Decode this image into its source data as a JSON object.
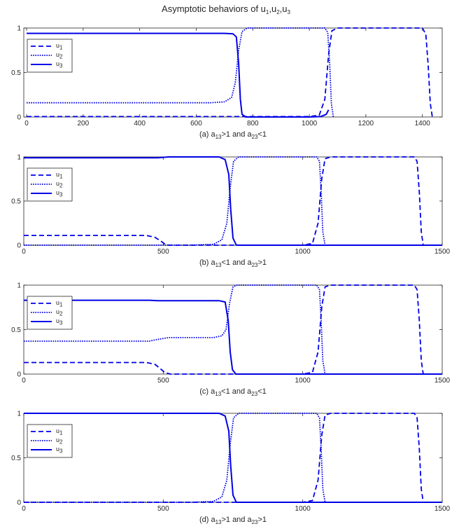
{
  "figure": {
    "title": {
      "main": "Asymptotic behaviors of u",
      "parts": [
        [
          "1",
          ",u"
        ],
        [
          "2",
          ",u"
        ],
        [
          "3",
          ""
        ]
      ]
    },
    "line_color": "#0000e6",
    "axis_color": "#262626"
  },
  "chart_data": [
    {
      "type": "line",
      "caption": {
        "prefix": "(a) a",
        "sub1": "13",
        "mid": ">1 and a",
        "sub2": "23",
        "suffix": "<1"
      },
      "xlim": [
        -10,
        1470
      ],
      "ylim": [
        0,
        1
      ],
      "xticks": [
        0,
        200,
        400,
        600,
        800,
        1000,
        1200,
        1400
      ],
      "yticks": [
        0,
        0.5,
        1
      ],
      "ytick_labels": [
        "0",
        "0.5",
        "1"
      ],
      "legend": {
        "position": "top-left",
        "entries": [
          {
            "label": "u",
            "sub": "1",
            "style": "dashed"
          },
          {
            "label": "u",
            "sub": "2",
            "style": "dotted"
          },
          {
            "label": "u",
            "sub": "3",
            "style": "solid"
          }
        ]
      },
      "series": [
        {
          "label": "u",
          "sub": "1",
          "style": "dashed",
          "points": [
            [
              0,
              0.005
            ],
            [
              1000,
              0.005
            ],
            [
              1035,
              0.02
            ],
            [
              1055,
              0.2
            ],
            [
              1068,
              0.7
            ],
            [
              1080,
              0.97
            ],
            [
              1100,
              1.0
            ],
            [
              1400,
              1.0
            ],
            [
              1412,
              0.93
            ],
            [
              1420,
              0.6
            ],
            [
              1428,
              0.15
            ],
            [
              1435,
              0.0
            ]
          ]
        },
        {
          "label": "u",
          "sub": "2",
          "style": "dotted",
          "points": [
            [
              0,
              0.16
            ],
            [
              650,
              0.16
            ],
            [
              700,
              0.17
            ],
            [
              725,
              0.22
            ],
            [
              738,
              0.38
            ],
            [
              750,
              0.75
            ],
            [
              762,
              0.96
            ],
            [
              780,
              1.0
            ],
            [
              1055,
              1.0
            ],
            [
              1065,
              0.95
            ],
            [
              1072,
              0.6
            ],
            [
              1078,
              0.15
            ],
            [
              1085,
              0.0
            ]
          ]
        },
        {
          "label": "u",
          "sub": "3",
          "style": "solid",
          "points": [
            [
              0,
              0.94
            ],
            [
              700,
              0.94
            ],
            [
              730,
              0.935
            ],
            [
              742,
              0.9
            ],
            [
              750,
              0.6
            ],
            [
              756,
              0.2
            ],
            [
              762,
              0.03
            ],
            [
              775,
              0.0
            ],
            [
              1000,
              0.0
            ],
            [
              1040,
              0.005
            ],
            [
              1060,
              0.03
            ],
            [
              1068,
              0.08
            ]
          ]
        }
      ]
    },
    {
      "type": "line",
      "caption": {
        "prefix": "(b) a",
        "sub1": "13",
        "mid": "<1 and a",
        "sub2": "23",
        "suffix": ">1"
      },
      "xlim": [
        0,
        1500
      ],
      "ylim": [
        0,
        1
      ],
      "xticks": [
        0,
        500,
        1000,
        1500
      ],
      "yticks": [
        0,
        0.5,
        1
      ],
      "ytick_labels": [
        "0",
        "0.5",
        "1"
      ],
      "legend": {
        "position": "top-left",
        "entries": [
          {
            "label": "u",
            "sub": "1",
            "style": "dashed"
          },
          {
            "label": "u",
            "sub": "2",
            "style": "dotted"
          },
          {
            "label": "u",
            "sub": "3",
            "style": "solid"
          }
        ]
      },
      "series": [
        {
          "label": "u",
          "sub": "1",
          "style": "dashed",
          "points": [
            [
              0,
              0.11
            ],
            [
              440,
              0.11
            ],
            [
              470,
              0.09
            ],
            [
              490,
              0.05
            ],
            [
              505,
              0.015
            ],
            [
              520,
              0.0
            ],
            [
              1000,
              0.0
            ],
            [
              1035,
              0.02
            ],
            [
              1055,
              0.25
            ],
            [
              1068,
              0.75
            ],
            [
              1080,
              0.98
            ],
            [
              1100,
              1.0
            ],
            [
              1400,
              1.0
            ],
            [
              1410,
              0.95
            ],
            [
              1418,
              0.6
            ],
            [
              1425,
              0.15
            ],
            [
              1432,
              0.0
            ],
            [
              1500,
              0.0
            ]
          ]
        },
        {
          "label": "u",
          "sub": "2",
          "style": "dotted",
          "points": [
            [
              0,
              0.0
            ],
            [
              600,
              0.0
            ],
            [
              680,
              0.01
            ],
            [
              710,
              0.06
            ],
            [
              728,
              0.25
            ],
            [
              740,
              0.65
            ],
            [
              752,
              0.95
            ],
            [
              770,
              1.0
            ],
            [
              1050,
              1.0
            ],
            [
              1060,
              0.95
            ],
            [
              1066,
              0.6
            ],
            [
              1072,
              0.15
            ],
            [
              1080,
              0.0
            ],
            [
              1500,
              0.0
            ]
          ]
        },
        {
          "label": "u",
          "sub": "3",
          "style": "solid",
          "points": [
            [
              0,
              0.99
            ],
            [
              480,
              0.99
            ],
            [
              520,
              1.0
            ],
            [
              700,
              1.0
            ],
            [
              722,
              0.97
            ],
            [
              735,
              0.8
            ],
            [
              742,
              0.4
            ],
            [
              750,
              0.08
            ],
            [
              762,
              0.0
            ],
            [
              1500,
              0.0
            ]
          ]
        }
      ]
    },
    {
      "type": "line",
      "caption": {
        "prefix": "(c) a",
        "sub1": "13",
        "mid": "<1 and a",
        "sub2": "23",
        "suffix": "<1"
      },
      "xlim": [
        0,
        1500
      ],
      "ylim": [
        0,
        1
      ],
      "xticks": [
        0,
        500,
        1000,
        1500
      ],
      "yticks": [
        0,
        0.5,
        1
      ],
      "ytick_labels": [
        "0",
        "0.5",
        "1"
      ],
      "legend": {
        "position": "top-left",
        "entries": [
          {
            "label": "u",
            "sub": "1",
            "style": "dashed"
          },
          {
            "label": "u",
            "sub": "2",
            "style": "dotted"
          },
          {
            "label": "u",
            "sub": "3",
            "style": "solid"
          }
        ]
      },
      "series": [
        {
          "label": "u",
          "sub": "1",
          "style": "dashed",
          "points": [
            [
              0,
              0.13
            ],
            [
              440,
              0.13
            ],
            [
              470,
              0.11
            ],
            [
              490,
              0.06
            ],
            [
              505,
              0.02
            ],
            [
              525,
              0.0
            ],
            [
              1000,
              0.0
            ],
            [
              1035,
              0.02
            ],
            [
              1055,
              0.25
            ],
            [
              1068,
              0.75
            ],
            [
              1080,
              0.98
            ],
            [
              1100,
              1.0
            ],
            [
              1400,
              1.0
            ],
            [
              1410,
              0.95
            ],
            [
              1418,
              0.6
            ],
            [
              1425,
              0.15
            ],
            [
              1432,
              0.0
            ],
            [
              1500,
              0.0
            ]
          ]
        },
        {
          "label": "u",
          "sub": "2",
          "style": "dotted",
          "points": [
            [
              0,
              0.37
            ],
            [
              450,
              0.37
            ],
            [
              480,
              0.39
            ],
            [
              520,
              0.41
            ],
            [
              680,
              0.41
            ],
            [
              710,
              0.43
            ],
            [
              725,
              0.5
            ],
            [
              738,
              0.8
            ],
            [
              750,
              0.98
            ],
            [
              765,
              1.0
            ],
            [
              1050,
              1.0
            ],
            [
              1060,
              0.95
            ],
            [
              1066,
              0.6
            ],
            [
              1072,
              0.15
            ],
            [
              1080,
              0.0
            ],
            [
              1500,
              0.0
            ]
          ]
        },
        {
          "label": "u",
          "sub": "3",
          "style": "solid",
          "points": [
            [
              0,
              0.83
            ],
            [
              450,
              0.83
            ],
            [
              480,
              0.825
            ],
            [
              700,
              0.825
            ],
            [
              722,
              0.81
            ],
            [
              733,
              0.6
            ],
            [
              740,
              0.25
            ],
            [
              748,
              0.05
            ],
            [
              760,
              0.0
            ],
            [
              1500,
              0.0
            ]
          ]
        }
      ]
    },
    {
      "type": "line",
      "caption": {
        "prefix": "(d) a",
        "sub1": "13",
        "mid": ">1 and a",
        "sub2": "23",
        "suffix": ">1"
      },
      "xlim": [
        0,
        1500
      ],
      "ylim": [
        0,
        1
      ],
      "xticks": [
        0,
        500,
        1000,
        1500
      ],
      "yticks": [
        0,
        0.5,
        1
      ],
      "ytick_labels": [
        "0",
        "0.5",
        "1"
      ],
      "legend": {
        "position": "top-left",
        "entries": [
          {
            "label": "u",
            "sub": "1",
            "style": "dashed"
          },
          {
            "label": "u",
            "sub": "2",
            "style": "dotted"
          },
          {
            "label": "u",
            "sub": "3",
            "style": "solid"
          }
        ]
      },
      "series": [
        {
          "label": "u",
          "sub": "1",
          "style": "dashed",
          "points": [
            [
              0,
              0.0
            ],
            [
              1000,
              0.0
            ],
            [
              1035,
              0.02
            ],
            [
              1055,
              0.25
            ],
            [
              1068,
              0.75
            ],
            [
              1080,
              0.98
            ],
            [
              1100,
              1.0
            ],
            [
              1400,
              1.0
            ],
            [
              1410,
              0.95
            ],
            [
              1418,
              0.6
            ],
            [
              1425,
              0.15
            ],
            [
              1432,
              0.0
            ],
            [
              1500,
              0.0
            ]
          ]
        },
        {
          "label": "u",
          "sub": "2",
          "style": "dotted",
          "points": [
            [
              0,
              0.0
            ],
            [
              600,
              0.0
            ],
            [
              680,
              0.01
            ],
            [
              710,
              0.06
            ],
            [
              728,
              0.25
            ],
            [
              740,
              0.65
            ],
            [
              752,
              0.95
            ],
            [
              770,
              1.0
            ],
            [
              1050,
              1.0
            ],
            [
              1060,
              0.95
            ],
            [
              1066,
              0.6
            ],
            [
              1072,
              0.15
            ],
            [
              1080,
              0.0
            ],
            [
              1500,
              0.0
            ]
          ]
        },
        {
          "label": "u",
          "sub": "3",
          "style": "solid",
          "points": [
            [
              0,
              1.0
            ],
            [
              700,
              1.0
            ],
            [
              722,
              0.97
            ],
            [
              735,
              0.8
            ],
            [
              742,
              0.4
            ],
            [
              750,
              0.08
            ],
            [
              762,
              0.0
            ],
            [
              1500,
              0.0
            ]
          ]
        }
      ]
    }
  ]
}
